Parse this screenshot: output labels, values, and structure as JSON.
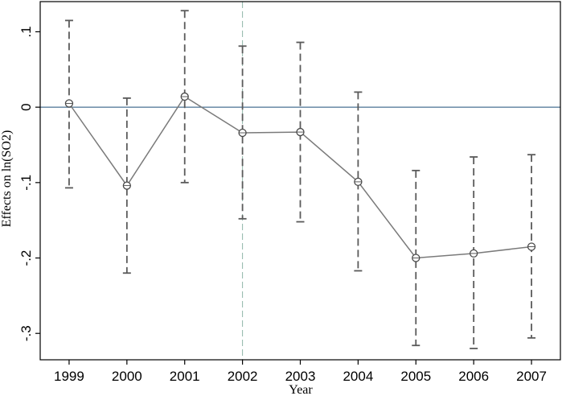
{
  "chart_data": {
    "type": "scatter",
    "xlabel": "Year",
    "ylabel": "Effects on ln(SO2)",
    "x": [
      1999,
      2000,
      2001,
      2002,
      2003,
      2004,
      2005,
      2006,
      2007
    ],
    "x_ticks": [
      "1999",
      "2000",
      "2001",
      "2002",
      "2003",
      "2004",
      "2005",
      "2006",
      "2007"
    ],
    "y_ticks": [
      {
        "value": 0.1,
        "label": ".1"
      },
      {
        "value": 0,
        "label": "0"
      },
      {
        "value": -0.1,
        "label": "-.1"
      },
      {
        "value": -0.2,
        "label": "-.2"
      },
      {
        "value": -0.3,
        "label": "-.3"
      }
    ],
    "xlim": [
      1998.5,
      2007.5
    ],
    "ylim": [
      -0.335,
      0.14
    ],
    "series": [
      {
        "values": [
          0.005,
          -0.104,
          0.014,
          -0.034,
          -0.033,
          -0.099,
          -0.2,
          -0.194,
          -0.185
        ],
        "ci_lower": [
          -0.107,
          -0.22,
          -0.1,
          -0.148,
          -0.152,
          -0.217,
          -0.316,
          -0.32,
          -0.306
        ],
        "ci_upper": [
          0.115,
          0.012,
          0.128,
          0.081,
          0.086,
          0.02,
          -0.084,
          -0.066,
          -0.063
        ]
      }
    ],
    "reference_lines": {
      "horizontal_y": 0,
      "vertical_x": 2002
    },
    "colors": {
      "line": "#7a7a7a",
      "marker": "#4a4a4a",
      "ci": "#5a5a5a",
      "zero_line": "#5b7f9e",
      "vertical_line": "#8fb5a8"
    },
    "grid": false,
    "legend": "none"
  }
}
